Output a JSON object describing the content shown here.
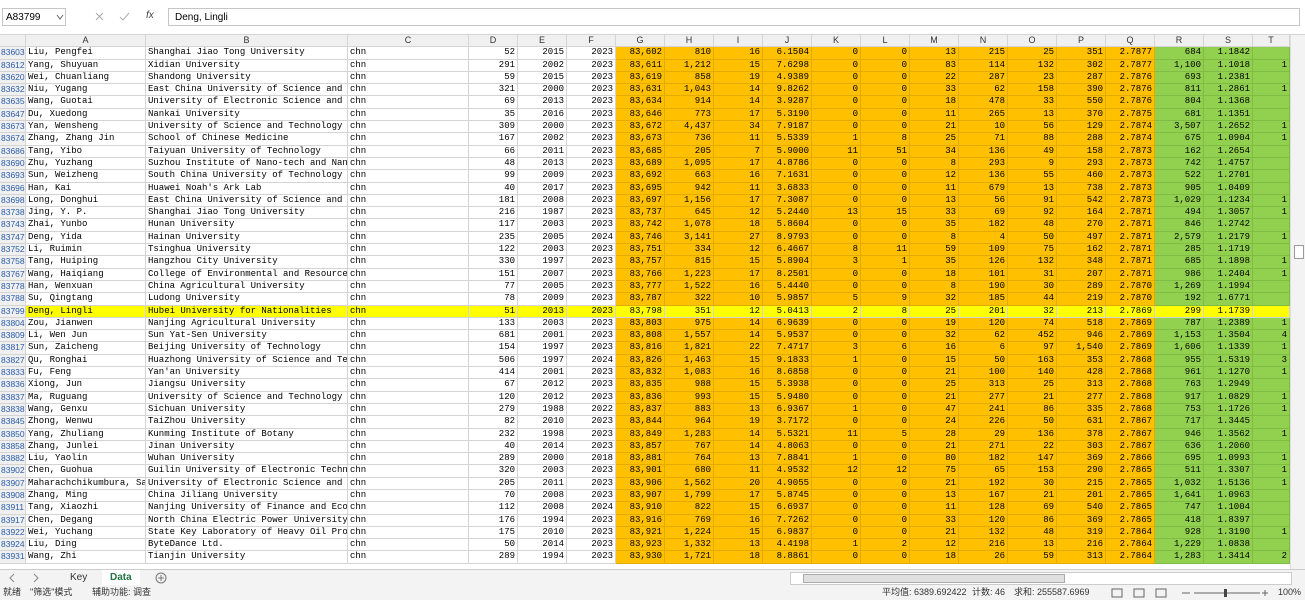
{
  "name_box": "A83799",
  "formula_icon": "fx",
  "formula": "Deng, Lingli",
  "column_headers": [
    "A",
    "B",
    "C",
    "D",
    "E",
    "F",
    "G",
    "H",
    "I",
    "J",
    "K",
    "L",
    "M",
    "N",
    "O",
    "P",
    "Q",
    "R",
    "S",
    "T"
  ],
  "rows": [
    [
      "83603",
      "Liu, Pengfei",
      "Shanghai Jiao Tong University",
      "chn",
      "52",
      "2015",
      "2023",
      "83,602",
      "810",
      "16",
      "6.1504",
      "0",
      "0",
      "13",
      "215",
      "25",
      "351",
      "2.7877",
      "684",
      "1.1842",
      ""
    ],
    [
      "83612",
      "Yang, Shuyuan",
      "Xidian University",
      "chn",
      "291",
      "2002",
      "2023",
      "83,611",
      "1,212",
      "15",
      "7.6298",
      "0",
      "0",
      "83",
      "114",
      "132",
      "302",
      "2.7877",
      "1,100",
      "1.1018",
      "1"
    ],
    [
      "83620",
      "Wei, Chuanliang",
      "Shandong University",
      "chn",
      "59",
      "2015",
      "2023",
      "83,619",
      "858",
      "19",
      "4.9389",
      "0",
      "0",
      "22",
      "287",
      "23",
      "287",
      "2.7876",
      "693",
      "1.2381",
      ""
    ],
    [
      "83632",
      "Niu, Yugang",
      "East China University of Science and",
      "chn",
      "321",
      "2000",
      "2023",
      "83,631",
      "1,043",
      "14",
      "9.8262",
      "0",
      "0",
      "33",
      "62",
      "158",
      "390",
      "2.7876",
      "811",
      "1.2861",
      "1"
    ],
    [
      "83635",
      "Wang, Guotai",
      "University of Electronic Science and",
      "chn",
      "69",
      "2013",
      "2023",
      "83,634",
      "914",
      "14",
      "3.9287",
      "0",
      "0",
      "18",
      "478",
      "33",
      "550",
      "2.7876",
      "804",
      "1.1368",
      ""
    ],
    [
      "83647",
      "Du, Xuedong",
      "Nankai University",
      "chn",
      "35",
      "2016",
      "2023",
      "83,646",
      "773",
      "17",
      "5.3190",
      "0",
      "0",
      "11",
      "265",
      "13",
      "370",
      "2.7875",
      "681",
      "1.1351",
      ""
    ],
    [
      "83673",
      "Yan, Wensheng",
      "University of Science and Technology",
      "chn",
      "309",
      "2000",
      "2023",
      "83,672",
      "4,437",
      "34",
      "7.9187",
      "0",
      "0",
      "21",
      "10",
      "56",
      "129",
      "2.7874",
      "3,507",
      "1.2652",
      "1"
    ],
    [
      "83674",
      "Zhang, Zhang Jin",
      "School of Chinese Medicine",
      "chn",
      "167",
      "2002",
      "2023",
      "83,673",
      "736",
      "11",
      "5.5339",
      "1",
      "8",
      "25",
      "71",
      "88",
      "288",
      "2.7874",
      "675",
      "1.0904",
      "1"
    ],
    [
      "83686",
      "Tang, Yibo",
      "Taiyuan University of Technology",
      "chn",
      "66",
      "2011",
      "2023",
      "83,685",
      "205",
      "7",
      "5.9000",
      "11",
      "51",
      "34",
      "136",
      "49",
      "158",
      "2.7873",
      "162",
      "1.2654",
      ""
    ],
    [
      "83690",
      "Zhu, Yuzhang",
      "Suzhou Institute of Nano-tech and Nan",
      "chn",
      "48",
      "2013",
      "2023",
      "83,689",
      "1,095",
      "17",
      "4.8786",
      "0",
      "0",
      "8",
      "293",
      "9",
      "293",
      "2.7873",
      "742",
      "1.4757",
      ""
    ],
    [
      "83693",
      "Sun, Weizheng",
      "South China University of Technology",
      "chn",
      "99",
      "2009",
      "2023",
      "83,692",
      "663",
      "16",
      "7.1631",
      "0",
      "0",
      "12",
      "136",
      "55",
      "460",
      "2.7873",
      "522",
      "1.2701",
      ""
    ],
    [
      "83696",
      "Han, Kai",
      "Huawei Noah's Ark Lab",
      "chn",
      "40",
      "2017",
      "2023",
      "83,695",
      "942",
      "11",
      "3.6833",
      "0",
      "0",
      "11",
      "679",
      "13",
      "738",
      "2.7873",
      "905",
      "1.0409",
      ""
    ],
    [
      "83698",
      "Long, Donghui",
      "East China University of Science and",
      "chn",
      "181",
      "2008",
      "2023",
      "83,697",
      "1,156",
      "17",
      "7.3087",
      "0",
      "0",
      "13",
      "56",
      "91",
      "542",
      "2.7873",
      "1,029",
      "1.1234",
      "1"
    ],
    [
      "83738",
      "Jing, Y. P.",
      "Shanghai Jiao Tong University",
      "chn",
      "216",
      "1987",
      "2023",
      "83,737",
      "645",
      "12",
      "5.2440",
      "13",
      "15",
      "33",
      "69",
      "92",
      "164",
      "2.7871",
      "494",
      "1.3057",
      "1"
    ],
    [
      "83743",
      "Zhai, Yunbo",
      "Hunan University",
      "chn",
      "117",
      "2003",
      "2023",
      "83,742",
      "1,078",
      "18",
      "5.8604",
      "0",
      "0",
      "35",
      "182",
      "48",
      "270",
      "2.7871",
      "846",
      "1.2742",
      ""
    ],
    [
      "83747",
      "Deng, Yida",
      "Hainan University",
      "chn",
      "235",
      "2005",
      "2024",
      "83,746",
      "3,141",
      "27",
      "8.9793",
      "0",
      "0",
      "8",
      "4",
      "50",
      "497",
      "2.7871",
      "2,579",
      "1.2179",
      "1"
    ],
    [
      "83752",
      "Li, Ruimin",
      "Tsinghua University",
      "chn",
      "122",
      "2003",
      "2023",
      "83,751",
      "334",
      "12",
      "6.4667",
      "8",
      "11",
      "59",
      "109",
      "75",
      "162",
      "2.7871",
      "285",
      "1.1719",
      ""
    ],
    [
      "83758",
      "Tang, Huiping",
      "Hangzhou City University",
      "chn",
      "330",
      "1997",
      "2023",
      "83,757",
      "815",
      "15",
      "5.8904",
      "3",
      "1",
      "35",
      "126",
      "132",
      "348",
      "2.7871",
      "685",
      "1.1898",
      "1"
    ],
    [
      "83767",
      "Wang, Haiqiang",
      "College of Environmental and Resource",
      "chn",
      "151",
      "2007",
      "2023",
      "83,766",
      "1,223",
      "17",
      "8.2501",
      "0",
      "0",
      "18",
      "101",
      "31",
      "207",
      "2.7871",
      "986",
      "1.2404",
      "1"
    ],
    [
      "83778",
      "Han, Wenxuan",
      "China Agricultural University",
      "chn",
      "77",
      "2005",
      "2023",
      "83,777",
      "1,522",
      "16",
      "5.4440",
      "0",
      "0",
      "8",
      "190",
      "30",
      "289",
      "2.7870",
      "1,269",
      "1.1994",
      ""
    ],
    [
      "83788",
      "Su, Qingtang",
      "Ludong University",
      "chn",
      "78",
      "2009",
      "2023",
      "83,787",
      "322",
      "10",
      "5.9857",
      "5",
      "9",
      "32",
      "185",
      "44",
      "219",
      "2.7870",
      "192",
      "1.6771",
      ""
    ],
    [
      "83799",
      "Deng, Lingli",
      "Hubei University for Nationalities",
      "chn",
      "51",
      "2013",
      "2023",
      "83,798",
      "351",
      "12",
      "5.0413",
      "2",
      "8",
      "25",
      "201",
      "32",
      "213",
      "2.7869",
      "299",
      "1.1739",
      ""
    ],
    [
      "83804",
      "Zou, Jianwen",
      "Nanjing Agricultural University",
      "chn",
      "133",
      "2003",
      "2023",
      "83,803",
      "975",
      "14",
      "6.9639",
      "0",
      "0",
      "19",
      "120",
      "74",
      "518",
      "2.7869",
      "787",
      "1.2389",
      "1"
    ],
    [
      "83809",
      "Li, Wen Jun",
      "Sun Yat-Sen University",
      "chn",
      "681",
      "2001",
      "2023",
      "83,808",
      "1,557",
      "14",
      "5.9537",
      "0",
      "0",
      "32",
      "62",
      "452",
      "946",
      "2.7869",
      "1,153",
      "1.3504",
      "4"
    ],
    [
      "83817",
      "Sun, Zaicheng",
      "Beijing University of Technology",
      "chn",
      "154",
      "1997",
      "2023",
      "83,816",
      "1,821",
      "22",
      "7.4717",
      "3",
      "6",
      "16",
      "6",
      "97",
      "1,540",
      "2.7869",
      "1,606",
      "1.1339",
      "1"
    ],
    [
      "83827",
      "Qu, Ronghai",
      "Huazhong University of Science and Te",
      "chn",
      "506",
      "1997",
      "2024",
      "83,826",
      "1,463",
      "15",
      "9.1833",
      "1",
      "0",
      "15",
      "50",
      "163",
      "353",
      "2.7868",
      "955",
      "1.5319",
      "3"
    ],
    [
      "83833",
      "Fu, Feng",
      "Yan'an University",
      "chn",
      "414",
      "2001",
      "2023",
      "83,832",
      "1,083",
      "16",
      "8.6858",
      "0",
      "0",
      "21",
      "100",
      "140",
      "428",
      "2.7868",
      "961",
      "1.1270",
      "1"
    ],
    [
      "83836",
      "Xiong, Jun",
      "Jiangsu University",
      "chn",
      "67",
      "2012",
      "2023",
      "83,835",
      "988",
      "15",
      "5.3938",
      "0",
      "0",
      "25",
      "313",
      "25",
      "313",
      "2.7868",
      "763",
      "1.2949",
      ""
    ],
    [
      "83837",
      "Ma, Ruguang",
      "University of Science and Technology",
      "chn",
      "120",
      "2012",
      "2023",
      "83,836",
      "993",
      "15",
      "5.9480",
      "0",
      "0",
      "21",
      "277",
      "21",
      "277",
      "2.7868",
      "917",
      "1.0829",
      "1"
    ],
    [
      "83838",
      "Wang, Genxu",
      "Sichuan University",
      "chn",
      "279",
      "1988",
      "2022",
      "83,837",
      "883",
      "13",
      "6.9367",
      "1",
      "0",
      "47",
      "241",
      "86",
      "335",
      "2.7868",
      "753",
      "1.1726",
      "1"
    ],
    [
      "83845",
      "Zhong, Wenwu",
      "TaiZhou University",
      "chn",
      "82",
      "2010",
      "2023",
      "83,844",
      "964",
      "19",
      "3.7172",
      "0",
      "0",
      "24",
      "226",
      "50",
      "631",
      "2.7867",
      "717",
      "1.3445",
      ""
    ],
    [
      "83850",
      "Yang, Zhuliang",
      "Kunming Institute of Botany",
      "chn",
      "232",
      "1998",
      "2023",
      "83,849",
      "1,283",
      "14",
      "5.5321",
      "11",
      "5",
      "28",
      "29",
      "136",
      "378",
      "2.7867",
      "946",
      "1.3562",
      "1"
    ],
    [
      "83858",
      "Zhang, Junlei",
      "Jinan University",
      "chn",
      "40",
      "2014",
      "2023",
      "83,857",
      "767",
      "14",
      "4.8063",
      "0",
      "0",
      "21",
      "271",
      "22",
      "303",
      "2.7867",
      "636",
      "1.2060",
      ""
    ],
    [
      "83882",
      "Liu, Yaolin",
      "Wuhan University",
      "chn",
      "289",
      "2000",
      "2018",
      "83,881",
      "764",
      "13",
      "7.8841",
      "1",
      "0",
      "80",
      "182",
      "147",
      "369",
      "2.7866",
      "695",
      "1.0993",
      "1"
    ],
    [
      "83902",
      "Chen, Guohua",
      "Guilin University of Electronic Techn",
      "chn",
      "320",
      "2003",
      "2023",
      "83,901",
      "680",
      "11",
      "4.9532",
      "12",
      "12",
      "75",
      "65",
      "153",
      "290",
      "2.7865",
      "511",
      "1.3307",
      "1"
    ],
    [
      "83907",
      "Maharachchikumbura, Sa",
      "University of Electronic Science and",
      "chn",
      "205",
      "2011",
      "2023",
      "83,906",
      "1,562",
      "20",
      "4.9055",
      "0",
      "0",
      "21",
      "192",
      "30",
      "215",
      "2.7865",
      "1,032",
      "1.5136",
      "1"
    ],
    [
      "83908",
      "Zhang, Ming",
      "China Jiliang University",
      "chn",
      "70",
      "2008",
      "2023",
      "83,907",
      "1,799",
      "17",
      "5.8745",
      "0",
      "0",
      "13",
      "167",
      "21",
      "201",
      "2.7865",
      "1,641",
      "1.0963",
      ""
    ],
    [
      "83911",
      "Tang, Xiaozhi",
      "Nanjing University of Finance and Eco",
      "chn",
      "112",
      "2008",
      "2024",
      "83,910",
      "822",
      "15",
      "6.6937",
      "0",
      "0",
      "11",
      "128",
      "69",
      "540",
      "2.7865",
      "747",
      "1.1004",
      ""
    ],
    [
      "83917",
      "Chen, Degang",
      "North China Electric Power University",
      "chn",
      "176",
      "1994",
      "2023",
      "83,916",
      "769",
      "16",
      "7.7262",
      "0",
      "0",
      "33",
      "120",
      "86",
      "369",
      "2.7865",
      "418",
      "1.8397",
      ""
    ],
    [
      "83922",
      "Wei, Yuchang",
      "State Key Laboratory of Heavy Oil Pro",
      "chn",
      "175",
      "2010",
      "2023",
      "83,921",
      "1,224",
      "15",
      "6.9837",
      "0",
      "0",
      "21",
      "132",
      "48",
      "319",
      "2.7864",
      "928",
      "1.3190",
      "1"
    ],
    [
      "83924",
      "Liu, Ding",
      "ByteDance Ltd.",
      "chn",
      "50",
      "2014",
      "2023",
      "83,923",
      "1,332",
      "13",
      "4.4198",
      "1",
      "2",
      "12",
      "216",
      "13",
      "216",
      "2.7864",
      "1,229",
      "1.0838",
      ""
    ],
    [
      "83931",
      "Wang, Zhi",
      "Tianjin University",
      "chn",
      "289",
      "1994",
      "2023",
      "83,930",
      "1,721",
      "18",
      "8.8861",
      "0",
      "0",
      "18",
      "26",
      "59",
      "313",
      "2.7864",
      "1,283",
      "1.3414",
      "2"
    ]
  ],
  "sheet_tabs": [
    "Key",
    "Data"
  ],
  "status": {
    "ready": "就绪",
    "filter_mode": "\"筛选\"模式",
    "accessibility": "辅助功能: 调查",
    "average": "平均值: 6389.692422",
    "count": "计数: 46",
    "sum": "求和: 255587.6969",
    "zoom": "100%"
  }
}
